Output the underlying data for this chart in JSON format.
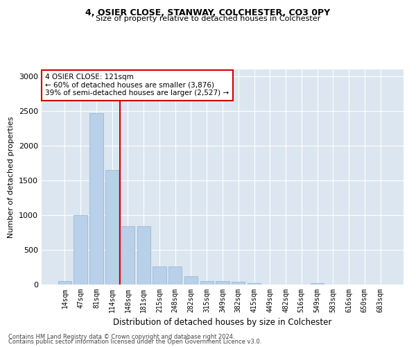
{
  "title1": "4, OSIER CLOSE, STANWAY, COLCHESTER, CO3 0PY",
  "title2": "Size of property relative to detached houses in Colchester",
  "xlabel": "Distribution of detached houses by size in Colchester",
  "ylabel": "Number of detached properties",
  "categories": [
    "14sqm",
    "47sqm",
    "81sqm",
    "114sqm",
    "148sqm",
    "181sqm",
    "215sqm",
    "248sqm",
    "282sqm",
    "315sqm",
    "349sqm",
    "382sqm",
    "415sqm",
    "449sqm",
    "482sqm",
    "516sqm",
    "549sqm",
    "583sqm",
    "616sqm",
    "650sqm",
    "683sqm"
  ],
  "values": [
    50,
    1000,
    2470,
    1650,
    840,
    840,
    260,
    260,
    120,
    55,
    55,
    40,
    25,
    0,
    0,
    0,
    25,
    0,
    0,
    0,
    0
  ],
  "bar_color": "#b8d0e8",
  "bar_edge_color": "#8ab4d4",
  "vline_color": "#cc0000",
  "vline_x": 3.5,
  "annotation_text": "4 OSIER CLOSE: 121sqm\n← 60% of detached houses are smaller (3,876)\n39% of semi-detached houses are larger (2,527) →",
  "annotation_box_color": "#ffffff",
  "annotation_box_edge": "#cc0000",
  "plot_background": "#dce6f0",
  "ylim": [
    0,
    3100
  ],
  "yticks": [
    0,
    500,
    1000,
    1500,
    2000,
    2500,
    3000
  ],
  "footer1": "Contains HM Land Registry data © Crown copyright and database right 2024.",
  "footer2": "Contains public sector information licensed under the Open Government Licence v3.0."
}
